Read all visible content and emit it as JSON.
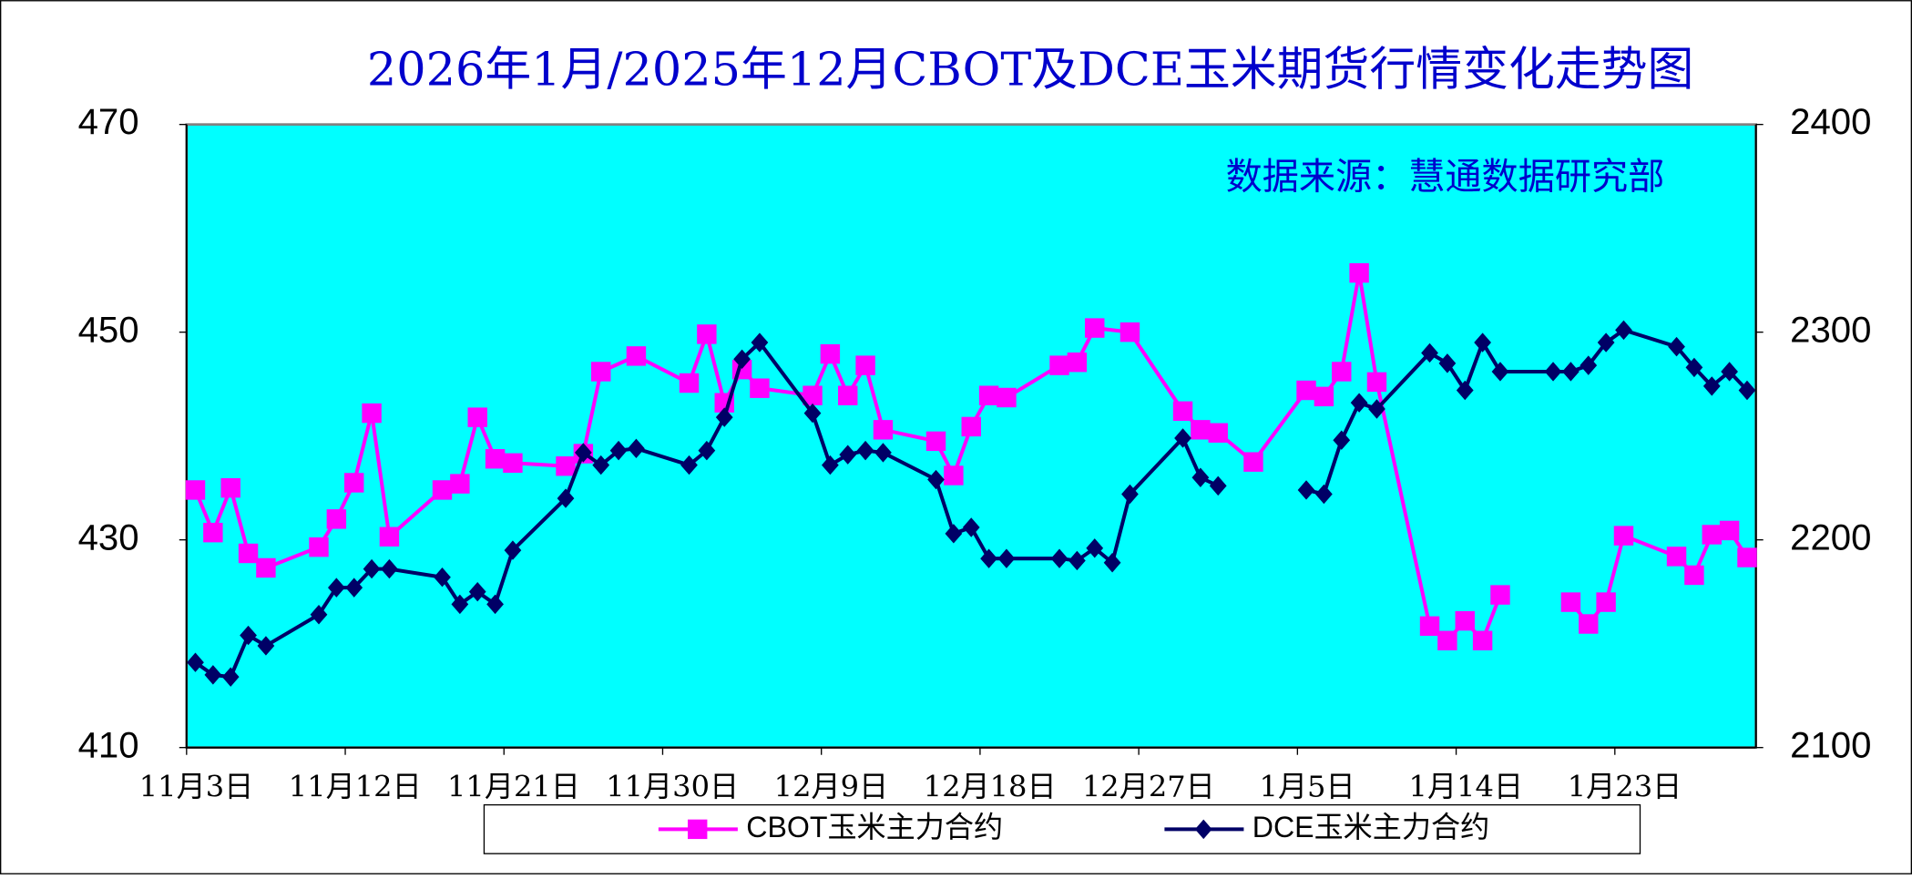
{
  "chart_data": {
    "type": "line",
    "title": "2026年1月/2025年12月CBOT及DCE玉米期货行情变化走势图",
    "annotation": "数据来源：慧通数据研究部",
    "xlim": [
      "11月3日",
      "1月30日"
    ],
    "xticks": [
      "11月3日",
      "11月12日",
      "11月21日",
      "11月30日",
      "12月9日",
      "12月18日",
      "12月27日",
      "1月5日",
      "1月14日",
      "1月23日"
    ],
    "ylim": [
      410,
      470
    ],
    "yticks": [
      410,
      430,
      450,
      470
    ],
    "y2lim": [
      2100,
      2400
    ],
    "y2ticks": [
      2100,
      2200,
      2300,
      2400
    ],
    "grid": false,
    "legend": "bottom",
    "background": "#00ffff",
    "series": [
      {
        "name": "CBOT玉米主力合约",
        "color": "#ff00ff",
        "marker": "square",
        "x": [
          "11月3日",
          "11月4日",
          "11月5日",
          "11月6日",
          "11月7日",
          "11月10日",
          "11月11日",
          "11月12日",
          "11月13日",
          "11月14日",
          "11月17日",
          "11月18日",
          "11月19日",
          "11月20日",
          "11月21日",
          "11月24日",
          "11月25日",
          "11月26日",
          "11月28日",
          "12月1日",
          "12月2日",
          "12月3日",
          "12月4日",
          "12月5日",
          "12月8日",
          "12月9日",
          "12月10日",
          "12月11日",
          "12月12日",
          "12月15日",
          "12月16日",
          "12月17日",
          "12月18日",
          "12月19日",
          "12月22日",
          "12月23日",
          "12月24日",
          "12月26日",
          "12月29日",
          "12月30日",
          "12月31日",
          "1月2日",
          "1月5日",
          "1月6日",
          "1月7日",
          "1月8日",
          "1月9日",
          "1月12日",
          "1月13日",
          "1月14日",
          "1月15日",
          "1月16日",
          "1月19日",
          "1月20日",
          "1月21日",
          "1月22日",
          "1月23日",
          "1月26日",
          "1月27日",
          "1月28日",
          "1月29日",
          "1月30日"
        ],
        "values": [
          434.8,
          430.7,
          435,
          428.7,
          427.3,
          429.3,
          432,
          435.5,
          442.2,
          430.3,
          434.8,
          435.4,
          441.8,
          437.8,
          437.4,
          437.1,
          438.3,
          446.2,
          447.7,
          445.1,
          449.8,
          443.2,
          446.4,
          444.6,
          443.9,
          447.9,
          443.9,
          446.8,
          440.6,
          439.5,
          436.2,
          440.9,
          443.9,
          443.7,
          446.8,
          447.1,
          450.4,
          450,
          442.4,
          440.6,
          440.3,
          437.5,
          444.4,
          443.8,
          446.2,
          455.7,
          445.2,
          421.7,
          420.3,
          422.2,
          420.3,
          424.7,
          null,
          424,
          421.9,
          424,
          430.4,
          428.4,
          426.6,
          430.5,
          430.9,
          428.3
        ]
      },
      {
        "name": "DCE玉米主力合约",
        "color": "#000066",
        "marker": "diamond",
        "axis": "y2",
        "x": [
          "11月3日",
          "11月4日",
          "11月5日",
          "11月6日",
          "11月7日",
          "11月10日",
          "11月11日",
          "11月12日",
          "11月13日",
          "11月14日",
          "11月17日",
          "11月18日",
          "11月19日",
          "11月20日",
          "11月21日",
          "11月24日",
          "11月25日",
          "11月26日",
          "11月27日",
          "11月28日",
          "12月1日",
          "12月2日",
          "12月3日",
          "12月4日",
          "12月5日",
          "12月8日",
          "12月9日",
          "12月10日",
          "12月11日",
          "12月12日",
          "12月15日",
          "12月16日",
          "12月17日",
          "12月18日",
          "12月19日",
          "12月22日",
          "12月23日",
          "12月24日",
          "12月25日",
          "12月26日",
          "12月29日",
          "12月30日",
          "12月31日",
          "1月2日",
          "1月5日",
          "1月6日",
          "1月7日",
          "1月8日",
          "1月9日",
          "1月12日",
          "1月13日",
          "1月14日",
          "1月15日",
          "1月16日",
          "1月19日",
          "1月20日",
          "1月21日",
          "1月22日",
          "1月23日",
          "1月26日",
          "1月27日",
          "1月28日",
          "1月29日",
          "1月30日"
        ],
        "values": [
          2141,
          2135,
          2134,
          2154,
          2149,
          2164,
          2177,
          2177,
          2186,
          2186,
          2182,
          2169,
          2175,
          2169,
          2195,
          2220,
          2242,
          2236,
          2243,
          2244,
          2236,
          2243,
          2259,
          2287,
          2295,
          2261,
          2236,
          2241,
          2243,
          2242,
          2229,
          2203,
          2206,
          2191,
          2191,
          2191,
          2190,
          2196,
          2189,
          2222,
          2249,
          2230,
          2226,
          null,
          2224,
          2222,
          2248,
          2266,
          2263,
          2290,
          2285,
          2272,
          2295,
          2281,
          2281,
          2281,
          2284,
          2295,
          2301,
          2293,
          2283,
          2274,
          2281,
          2272
        ]
      }
    ]
  }
}
